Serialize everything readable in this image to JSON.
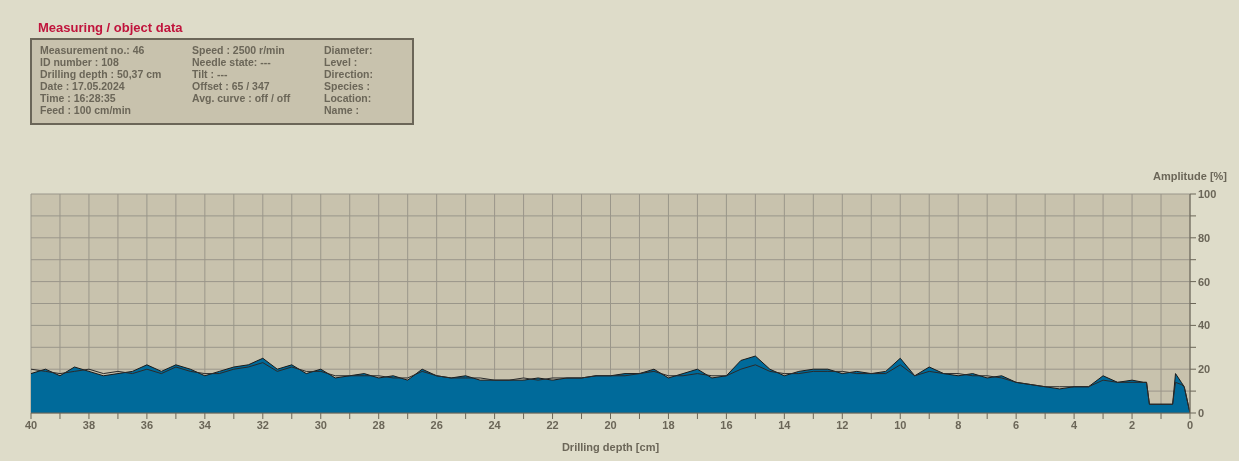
{
  "chart_data": [
    {
      "type": "other",
      "title": "Measuring / object data",
      "annotations": [
        "Measurement no.: 46",
        "ID number : 108",
        "Drilling depth : 50,37 cm",
        "Date : 17.05.2024",
        "Time : 16:28:35",
        "Feed : 100 cm/min",
        "Speed : 2500 r/min",
        "Needle state: ---",
        "Tilt : ---",
        "Offset : 65 / 347",
        "Avg. curve : off / off",
        "Diameter:",
        "Level :",
        "Direction:",
        "Species :",
        "Location:",
        "Name :"
      ]
    },
    {
      "type": "area",
      "xlabel": "Drilling depth [cm]",
      "ylabel": "Amplitude [%]",
      "grid": true,
      "legend": false,
      "xlim": [
        40,
        0
      ],
      "ylim": [
        0,
        100
      ],
      "xticks": [
        0,
        {
          "value": 1,
          "label": null
        },
        2,
        {
          "value": 3,
          "label": null
        },
        4,
        {
          "value": 5,
          "label": null
        },
        6,
        {
          "value": 7,
          "label": null
        },
        8,
        {
          "value": 9,
          "label": null
        },
        10,
        {
          "value": 11,
          "label": null
        },
        12,
        {
          "value": 13,
          "label": null
        },
        14,
        {
          "value": 15,
          "label": null
        },
        16,
        {
          "value": 17,
          "label": null
        },
        18,
        {
          "value": 19,
          "label": null
        },
        20,
        {
          "value": 21,
          "label": null
        },
        22,
        {
          "value": 23,
          "label": null
        },
        24,
        {
          "value": 25,
          "label": null
        },
        26,
        {
          "value": 27,
          "label": null
        },
        28,
        {
          "value": 29,
          "label": null
        },
        30,
        {
          "value": 31,
          "label": null
        },
        32,
        {
          "value": 33,
          "label": null
        },
        34,
        {
          "value": 35,
          "label": null
        },
        36,
        {
          "value": 37,
          "label": null
        },
        38,
        {
          "value": 39,
          "label": null
        },
        40
      ],
      "yticks": [
        0,
        {
          "value": 10,
          "label": null
        },
        20,
        {
          "value": 30,
          "label": null
        },
        40,
        {
          "value": 50,
          "label": null
        },
        60,
        {
          "value": 70,
          "label": null
        },
        80,
        {
          "value": 90,
          "label": null
        },
        100
      ],
      "x": [
        40,
        39.5,
        39,
        38.5,
        38,
        37.5,
        37,
        36.5,
        36,
        35.5,
        35,
        34.5,
        34,
        33.5,
        33,
        32.5,
        32,
        31.5,
        31,
        30.5,
        30,
        29.5,
        29,
        28.5,
        28,
        27.5,
        27,
        26.5,
        26,
        25.5,
        25,
        24.5,
        24,
        23.5,
        23,
        22.5,
        22,
        21.5,
        21,
        20.5,
        20,
        19.5,
        19,
        18.5,
        18,
        17.5,
        17,
        16.5,
        16,
        15.5,
        15,
        14.5,
        14,
        13.5,
        13,
        12.5,
        12,
        11.5,
        11,
        10.5,
        10,
        9.5,
        9,
        8.5,
        8,
        7.5,
        7,
        6.5,
        6,
        5.5,
        5,
        4.5,
        4,
        3.5,
        3,
        2.5,
        2,
        1.6,
        1.5,
        1.4,
        1,
        0.6,
        0.5,
        0.3,
        0.2,
        0
      ],
      "series": [
        {
          "type": "area",
          "color": "#006a9a",
          "values": [
            18,
            20,
            17,
            21,
            19,
            17,
            18,
            19,
            22,
            19,
            22,
            20,
            17,
            19,
            21,
            22,
            25,
            20,
            22,
            18,
            20,
            16,
            17,
            18,
            16,
            17,
            15,
            20,
            17,
            16,
            17,
            15,
            15,
            15,
            15,
            16,
            15,
            16,
            16,
            17,
            17,
            18,
            18,
            20,
            16,
            18,
            20,
            16,
            17,
            24,
            26,
            20,
            17,
            19,
            20,
            20,
            18,
            19,
            18,
            19,
            25,
            17,
            21,
            18,
            17,
            18,
            16,
            17,
            14,
            13,
            12,
            11,
            12,
            12,
            17,
            14,
            15,
            14,
            14,
            4,
            4,
            4,
            18,
            14,
            12,
            0
          ]
        },
        {
          "type": "line",
          "color": "#2a2a2a",
          "values": [
            20,
            19,
            18,
            19,
            20,
            18,
            19,
            18,
            20,
            18,
            21,
            19,
            18,
            18,
            20,
            21,
            23,
            19,
            21,
            19,
            19,
            17,
            17,
            17,
            17,
            16,
            16,
            19,
            17,
            16,
            16,
            16,
            15,
            15,
            16,
            15,
            16,
            16,
            16,
            17,
            17,
            17,
            18,
            19,
            17,
            17,
            18,
            17,
            17,
            20,
            22,
            19,
            18,
            18,
            19,
            19,
            19,
            18,
            18,
            18,
            22,
            17,
            19,
            18,
            18,
            17,
            17,
            16,
            14,
            13,
            12,
            12,
            12,
            12,
            15,
            14,
            14,
            14,
            14,
            4,
            4,
            4,
            14,
            13,
            12,
            0
          ]
        }
      ]
    }
  ]
}
